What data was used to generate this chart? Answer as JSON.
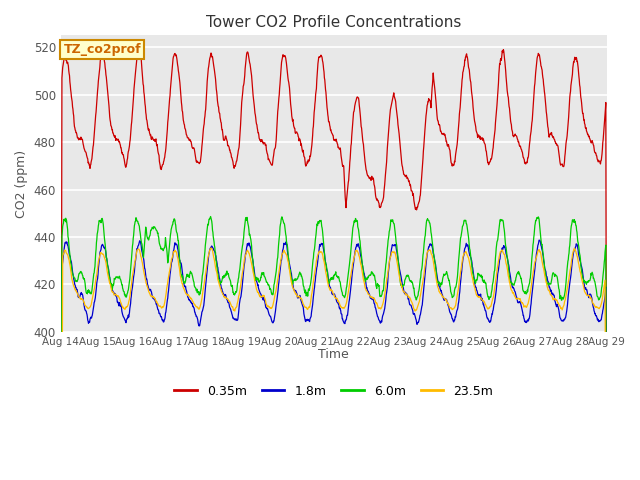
{
  "title": "Tower CO2 Profile Concentrations",
  "xlabel": "Time",
  "ylabel": "CO2 (ppm)",
  "ylim": [
    400,
    525
  ],
  "plot_bg": "#e8e8e8",
  "fig_bg": "#ffffff",
  "series": {
    "red": {
      "label": "0.35m",
      "color": "#cc0000"
    },
    "blue": {
      "label": "1.8m",
      "color": "#0000cc"
    },
    "green": {
      "label": "6.0m",
      "color": "#00cc00"
    },
    "orange": {
      "label": "23.5m",
      "color": "#ffbb00"
    }
  },
  "xtick_labels": [
    "Aug 14",
    "Aug 15",
    "Aug 16",
    "Aug 17",
    "Aug 18",
    "Aug 19",
    "Aug 20",
    "Aug 21",
    "Aug 22",
    "Aug 23",
    "Aug 24",
    "Aug 25",
    "Aug 26",
    "Aug 27",
    "Aug 28",
    "Aug 29"
  ],
  "ytick_labels": [
    400,
    420,
    440,
    460,
    480,
    500,
    520
  ],
  "tag_label": "TZ_co2prof",
  "tag_bg": "#ffffcc",
  "tag_edge": "#cc8800",
  "n_days": 15,
  "seed": 42
}
